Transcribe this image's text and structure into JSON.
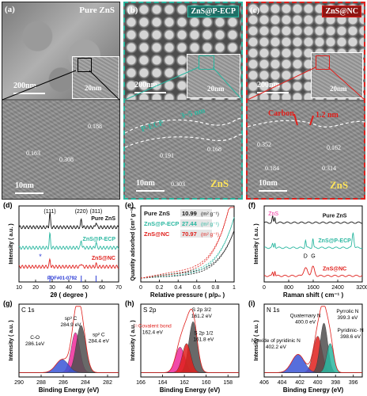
{
  "figure": {
    "panel_a": {
      "letter": "(a)",
      "tag": "Pure ZnS",
      "sem_scale": "200nm",
      "inset_scale": "20nm",
      "tem_scale": "10nm",
      "fringes": [
        "0.188",
        "0.163",
        "0.308"
      ]
    },
    "panel_b": {
      "letter": "(b)",
      "tag": "ZnS@P-ECP",
      "sem_scale": "200nm",
      "inset_scale": "20nm",
      "tem_scale": "10nm",
      "coat_label": "P-ECP",
      "coat_thick": "3~5 nm",
      "fringes": [
        "0.191",
        "0.168",
        "0.303"
      ],
      "core": "ZnS"
    },
    "panel_c": {
      "letter": "(c)",
      "tag": "ZnS@NC",
      "sem_scale": "200nm",
      "inset_scale": "20nm",
      "tem_scale": "10nm",
      "coat_label": "Carbon",
      "coat_thick": "1.2 nm",
      "fringes": [
        "0.352",
        "0.162",
        "0.184",
        "0.314"
      ],
      "core": "ZnS"
    },
    "colors": {
      "c_black": "#111111",
      "c_teal": "#2ab7a0",
      "c_red": "#e0201c",
      "c_blue": "#2b3bd6"
    }
  },
  "chart_data": [
    {
      "id": "d",
      "type": "line",
      "letter": "(d)",
      "xlabel": "2θ ( degree )",
      "ylabel": "Intensity ( a.u. )",
      "xlim": [
        10,
        70
      ],
      "xticks": [
        10,
        20,
        30,
        40,
        50,
        60,
        70
      ],
      "series": [
        {
          "name": "Pure ZnS",
          "color": "#111111"
        },
        {
          "name": "ZnS@P-ECP",
          "color": "#2ab7a0"
        },
        {
          "name": "ZnS@NC",
          "color": "#e0201c"
        }
      ],
      "peaks": [
        "(111)",
        "(220)",
        "(311)"
      ],
      "peak_x": [
        28.6,
        47.5,
        56.4
      ],
      "reference": "PDF#01-0792",
      "marker": "*"
    },
    {
      "id": "e",
      "type": "line",
      "letter": "(e)",
      "xlabel": "Relative pressure ( p/p₀ )",
      "ylabel": "Quantity adsorbed (cm³ g⁻¹)",
      "xlim": [
        0.0,
        1.0
      ],
      "xticks": [
        0.0,
        0.2,
        0.4,
        0.6,
        0.8,
        1.0
      ],
      "series": [
        {
          "name": "Pure ZnS",
          "color": "#111111",
          "value": "10.99",
          "unit": "(m² g⁻¹)"
        },
        {
          "name": "ZnS@P-ECP",
          "color": "#2ab7a0",
          "value": "27.44",
          "unit": "(m² g⁻¹)"
        },
        {
          "name": "ZnS@NC",
          "color": "#e0201c",
          "value": "70.97",
          "unit": "(m² g⁻¹)"
        }
      ]
    },
    {
      "id": "f",
      "type": "line",
      "letter": "(f)",
      "xlabel": "Raman shift ( cm⁻¹ )",
      "ylabel": "Intensity ( a.u. )",
      "xlim": [
        0,
        3200
      ],
      "xticks": [
        0,
        800,
        1600,
        2400,
        3200
      ],
      "series": [
        {
          "name": "Pure ZnS",
          "color": "#111111"
        },
        {
          "name": "ZnS@P-ECP",
          "color": "#2ab7a0"
        },
        {
          "name": "ZnS@NC",
          "color": "#e0201c"
        }
      ],
      "annotations": [
        "ZnS",
        "D",
        "G"
      ]
    },
    {
      "id": "g",
      "type": "area",
      "letter": "(g)",
      "title": "C 1s",
      "xlabel": "Binding Energy (eV)",
      "ylabel": "Intensity ( a.u. )",
      "xlim": [
        290,
        281
      ],
      "xticks": [
        290,
        288,
        286,
        284,
        282
      ],
      "peaks": [
        {
          "name": "sp³ C",
          "value": "284.9 eV",
          "center": 284.9,
          "color": "#ef2a9a"
        },
        {
          "name": "sp² C",
          "value": "284.4 eV",
          "center": 284.4,
          "color": "#4f4f4f"
        },
        {
          "name": "C-O",
          "value": "286.1eV",
          "center": 286.1,
          "color": "#3a55d6"
        }
      ]
    },
    {
      "id": "h",
      "type": "area",
      "letter": "(h)",
      "title": "S 2p",
      "xlabel": "Binding Energy (eV)",
      "ylabel": "Intensity ( a.u. )",
      "xlim": [
        166,
        157
      ],
      "xticks": [
        166,
        164,
        162,
        160,
        158
      ],
      "peaks": [
        {
          "name": "Covalent bond",
          "value": "162.4 eV",
          "center": 162.4,
          "color": "#ef2a9a"
        },
        {
          "name": "S 2p 3/2",
          "value": "161.2 eV",
          "center": 161.2,
          "color": "#4f4f4f"
        },
        {
          "name": "S 2p 1/2",
          "value": "161.8 eV",
          "center": 161.8,
          "color": "#e0201c"
        }
      ],
      "star": "☆"
    },
    {
      "id": "i",
      "type": "area",
      "letter": "(i)",
      "title": "N 1s",
      "xlabel": "Binding Energy (eV)",
      "ylabel": "Intensity ( a.u. )",
      "xlim": [
        406,
        395
      ],
      "xticks": [
        406,
        404,
        402,
        400,
        398,
        396
      ],
      "peaks": [
        {
          "name": "Quaternary N",
          "value": "400.0 eV",
          "center": 400.0,
          "color": "#e0201c"
        },
        {
          "name": "Pyrrolic N",
          "value": "399.3 eV",
          "center": 399.3,
          "color": "#4f4f4f"
        },
        {
          "name": "Pyridinic- N",
          "value": "398.6 eV",
          "center": 398.6,
          "color": "#2ab7a0"
        },
        {
          "name": "N-oxide of pyridinic N",
          "value": "402.2 eV",
          "center": 402.2,
          "color": "#3a55d6"
        }
      ]
    }
  ]
}
